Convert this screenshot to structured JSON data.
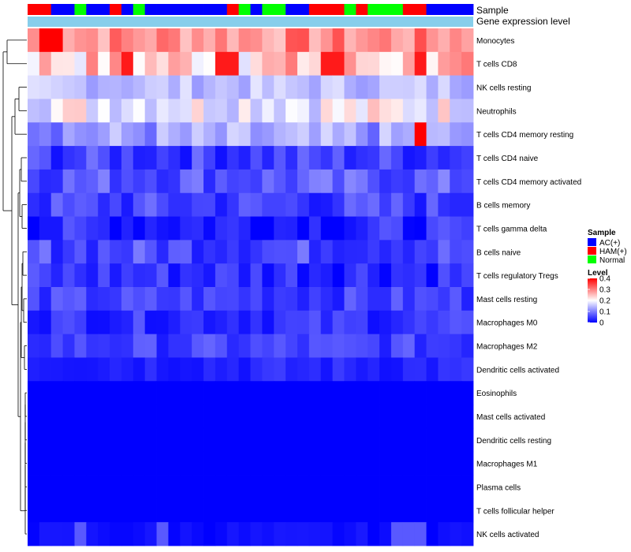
{
  "chart_data": {
    "type": "heatmap",
    "title": "",
    "row_labels": [
      "Monocytes",
      "T cells CD8",
      "NK cells resting",
      "Neutrophils",
      "T cells CD4 memory resting",
      "T cells CD4 naive",
      "T cells CD4 memory activated",
      "B cells memory",
      "T cells gamma delta",
      "B cells naive",
      "T cells regulatory  Tregs",
      "Mast cells resting",
      "Macrophages M0",
      "Macrophages M2",
      "Dendritic cells activated",
      "Eosinophils",
      "Mast cells activated",
      "Dendritic cells resting",
      "Macrophages M1",
      "Plasma cells",
      "T cells follicular helper",
      "NK cells activated"
    ],
    "column_count": 38,
    "annotation_rows": [
      "Sample",
      "Gene expression level"
    ],
    "sample_annotation": [
      "HAM(+)",
      "HAM(+)",
      "AC(+)",
      "AC(+)",
      "Normal",
      "AC(+)",
      "AC(+)",
      "HAM(+)",
      "AC(+)",
      "Normal",
      "AC(+)",
      "AC(+)",
      "AC(+)",
      "AC(+)",
      "AC(+)",
      "AC(+)",
      "AC(+)",
      "HAM(+)",
      "Normal",
      "AC(+)",
      "Normal",
      "Normal",
      "AC(+)",
      "AC(+)",
      "HAM(+)",
      "HAM(+)",
      "HAM(+)",
      "Normal",
      "HAM(+)",
      "Normal",
      "Normal",
      "Normal",
      "HAM(+)",
      "HAM(+)",
      "AC(+)",
      "AC(+)",
      "AC(+)",
      "AC(+)"
    ],
    "gene_expression_color": "#87ceeb",
    "legend_sample": {
      "title": "Sample",
      "entries": [
        {
          "label": "AC(+)",
          "color": "#0000ff"
        },
        {
          "label": "HAM(+)",
          "color": "#ff0000"
        },
        {
          "label": "Normal",
          "color": "#00ff00"
        }
      ]
    },
    "legend_level": {
      "title": "Level",
      "min": 0,
      "max": 0.4,
      "ticks": [
        "0.4",
        "0.3",
        "0.2",
        "0.1",
        "0"
      ],
      "color_stops": [
        {
          "value": 0,
          "color": "#0000ff"
        },
        {
          "value": 0.2,
          "color": "#ffffff"
        },
        {
          "value": 0.4,
          "color": "#ff0000"
        }
      ]
    },
    "row_profiles": [
      {
        "base": 0.29,
        "spread": 0.05,
        "hot": [
          1,
          2
        ],
        "hot_value": 0.4
      },
      {
        "base": 0.24,
        "spread": 0.07,
        "hot": [
          8,
          16,
          17,
          25,
          26,
          33
        ],
        "hot_value": 0.38
      },
      {
        "base": 0.15,
        "spread": 0.03,
        "hot": [],
        "hot_value": 0
      },
      {
        "base": 0.2,
        "spread": 0.06,
        "hot": [],
        "hot_value": 0
      },
      {
        "base": 0.12,
        "spread": 0.05,
        "hot": [
          33
        ],
        "hot_value": 0.4
      },
      {
        "base": 0.05,
        "spread": 0.04,
        "hot": [],
        "hot_value": 0
      },
      {
        "base": 0.07,
        "spread": 0.04,
        "hot": [],
        "hot_value": 0
      },
      {
        "base": 0.05,
        "spread": 0.04,
        "hot": [],
        "hot_value": 0
      },
      {
        "base": 0.03,
        "spread": 0.04,
        "hot": [],
        "hot_value": 0
      },
      {
        "base": 0.06,
        "spread": 0.04,
        "hot": [],
        "hot_value": 0
      },
      {
        "base": 0.04,
        "spread": 0.04,
        "hot": [],
        "hot_value": 0
      },
      {
        "base": 0.05,
        "spread": 0.03,
        "hot": [],
        "hot_value": 0
      },
      {
        "base": 0.04,
        "spread": 0.03,
        "hot": [],
        "hot_value": 0
      },
      {
        "base": 0.05,
        "spread": 0.03,
        "hot": [],
        "hot_value": 0
      },
      {
        "base": 0.03,
        "spread": 0.02,
        "hot": [],
        "hot_value": 0
      },
      {
        "base": 0.0,
        "spread": 0.0,
        "hot": [],
        "hot_value": 0
      },
      {
        "base": 0.0,
        "spread": 0.0,
        "hot": [],
        "hot_value": 0
      },
      {
        "base": 0.0,
        "spread": 0.0,
        "hot": [],
        "hot_value": 0
      },
      {
        "base": 0.0,
        "spread": 0.0,
        "hot": [],
        "hot_value": 0
      },
      {
        "base": 0.0,
        "spread": 0.0,
        "hot": [],
        "hot_value": 0
      },
      {
        "base": 0.0,
        "spread": 0.0,
        "hot": [],
        "hot_value": 0
      },
      {
        "base": 0.01,
        "spread": 0.01,
        "hot": [
          4,
          11,
          31,
          32,
          33
        ],
        "hot_value": 0.07
      }
    ]
  }
}
